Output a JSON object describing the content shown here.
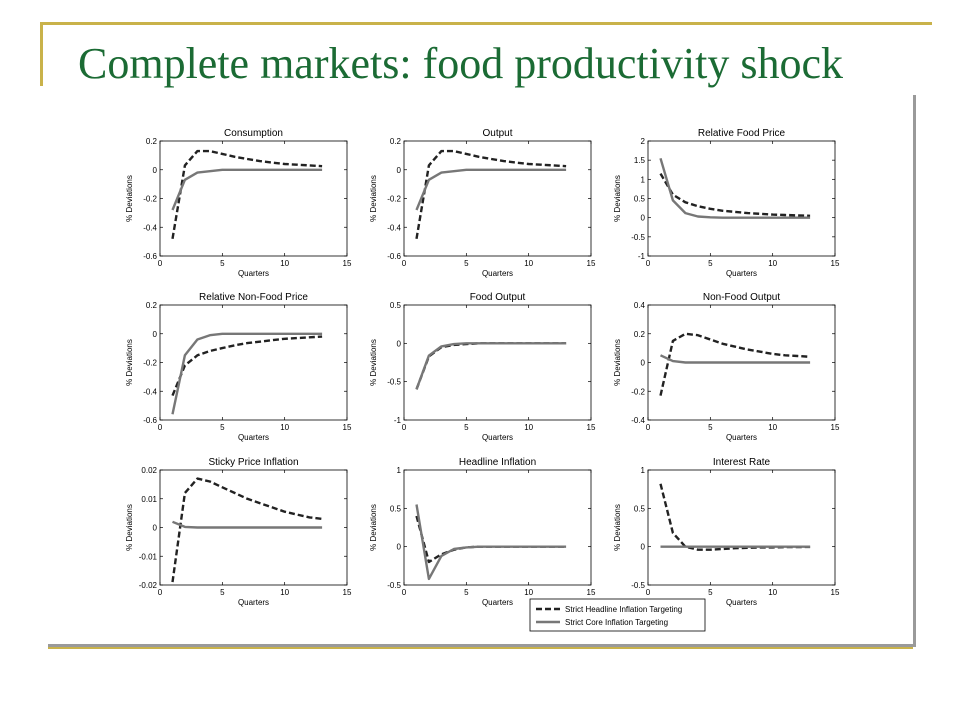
{
  "slide": {
    "title": "Complete markets: food productivity shock"
  },
  "colors": {
    "title": "#1b6b34",
    "accent_rule": "#c9b24a",
    "headline_series": "#222222",
    "core_series": "#777777"
  },
  "legend": {
    "placement": "bottom-center",
    "entries": [
      {
        "label": "Strict Headline Inflation Targeting",
        "style": "dashed",
        "color": "#222222"
      },
      {
        "label": "Strict Core Inflation Targeting",
        "style": "solid",
        "color": "#777777"
      }
    ]
  },
  "chart_data": [
    {
      "type": "line",
      "title": "Consumption",
      "xlabel": "Quarters",
      "ylabel": "% Deviations",
      "xlim": [
        0,
        15
      ],
      "ylim": [
        -0.6,
        0.2
      ],
      "xticks": [
        0,
        5,
        10,
        15
      ],
      "xtick_labels": [
        "0",
        "5",
        "10",
        "15"
      ],
      "yticks": [
        -0.6,
        -0.4,
        -0.2,
        0,
        0.2
      ],
      "ytick_labels": [
        "-0.6",
        "-0.4",
        "-0.2",
        "0",
        "0.2"
      ],
      "x": [
        1,
        2,
        3,
        4,
        5,
        6,
        7,
        8,
        9,
        10,
        11,
        12,
        13
      ],
      "series": [
        {
          "values": [
            -0.48,
            0.03,
            0.13,
            0.13,
            0.11,
            0.09,
            0.075,
            0.06,
            0.05,
            0.04,
            0.035,
            0.03,
            0.025
          ]
        },
        {
          "values": [
            -0.28,
            -0.07,
            -0.02,
            -0.01,
            0,
            0,
            0,
            0,
            0,
            0,
            0,
            0,
            0
          ]
        }
      ]
    },
    {
      "type": "line",
      "title": "Output",
      "xlabel": "Quarters",
      "ylabel": "% Deviations",
      "xlim": [
        0,
        15
      ],
      "ylim": [
        -0.6,
        0.2
      ],
      "xticks": [
        0,
        5,
        10,
        15
      ],
      "xtick_labels": [
        "0",
        "5",
        "10",
        "15"
      ],
      "yticks": [
        -0.6,
        -0.4,
        -0.2,
        0,
        0.2
      ],
      "ytick_labels": [
        "-0.6",
        "-0.4",
        "-0.2",
        "0",
        "0.2"
      ],
      "x": [
        1,
        2,
        3,
        4,
        5,
        6,
        7,
        8,
        9,
        10,
        11,
        12,
        13
      ],
      "series": [
        {
          "values": [
            -0.48,
            0.03,
            0.13,
            0.13,
            0.11,
            0.09,
            0.075,
            0.06,
            0.05,
            0.04,
            0.035,
            0.03,
            0.025
          ]
        },
        {
          "values": [
            -0.28,
            -0.07,
            -0.02,
            -0.01,
            0,
            0,
            0,
            0,
            0,
            0,
            0,
            0,
            0
          ]
        }
      ]
    },
    {
      "type": "line",
      "title": "Relative Food Price",
      "xlabel": "Quarters",
      "ylabel": "% Deviations",
      "xlim": [
        0,
        15
      ],
      "ylim": [
        -1,
        2
      ],
      "xticks": [
        0,
        5,
        10,
        15
      ],
      "xtick_labels": [
        "0",
        "5",
        "10",
        "15"
      ],
      "yticks": [
        -1,
        -0.5,
        0,
        0.5,
        1,
        1.5,
        2
      ],
      "ytick_labels": [
        "-1",
        "-0.5",
        "0",
        "0.5",
        "1",
        "1.5",
        "2"
      ],
      "x": [
        1,
        2,
        3,
        4,
        5,
        6,
        7,
        8,
        9,
        10,
        11,
        12,
        13
      ],
      "series": [
        {
          "values": [
            1.15,
            0.6,
            0.4,
            0.3,
            0.23,
            0.18,
            0.15,
            0.12,
            0.1,
            0.08,
            0.07,
            0.06,
            0.05
          ]
        },
        {
          "values": [
            1.55,
            0.45,
            0.12,
            0.03,
            0.01,
            0,
            0,
            0,
            0,
            0,
            0,
            0,
            0
          ]
        }
      ]
    },
    {
      "type": "line",
      "title": "Relative Non-Food Price",
      "xlabel": "Quarters",
      "ylabel": "% Deviations",
      "xlim": [
        0,
        15
      ],
      "ylim": [
        -0.6,
        0.2
      ],
      "xticks": [
        0,
        5,
        10,
        15
      ],
      "xtick_labels": [
        "0",
        "5",
        "10",
        "15"
      ],
      "yticks": [
        -0.6,
        -0.4,
        -0.2,
        0,
        0.2
      ],
      "ytick_labels": [
        "-0.6",
        "-0.4",
        "-0.2",
        "0",
        "0.2"
      ],
      "x": [
        1,
        2,
        3,
        4,
        5,
        6,
        7,
        8,
        9,
        10,
        11,
        12,
        13
      ],
      "series": [
        {
          "values": [
            -0.43,
            -0.22,
            -0.15,
            -0.12,
            -0.1,
            -0.08,
            -0.065,
            -0.055,
            -0.045,
            -0.035,
            -0.03,
            -0.025,
            -0.02
          ]
        },
        {
          "values": [
            -0.56,
            -0.15,
            -0.04,
            -0.01,
            0,
            0,
            0,
            0,
            0,
            0,
            0,
            0,
            0
          ]
        }
      ]
    },
    {
      "type": "line",
      "title": "Food Output",
      "xlabel": "Quarters",
      "ylabel": "% Deviations",
      "xlim": [
        0,
        15
      ],
      "ylim": [
        -1,
        0.5
      ],
      "xticks": [
        0,
        5,
        10,
        15
      ],
      "xtick_labels": [
        "0",
        "5",
        "10",
        "15"
      ],
      "yticks": [
        -1,
        -0.5,
        0,
        0.5
      ],
      "ytick_labels": [
        "-1",
        "-0.5",
        "0",
        "0.5"
      ],
      "x": [
        1,
        2,
        3,
        4,
        5,
        6,
        7,
        8,
        9,
        10,
        11,
        12,
        13
      ],
      "series": [
        {
          "values": [
            -0.6,
            -0.17,
            -0.05,
            -0.02,
            -0.01,
            0,
            0,
            0,
            0,
            0,
            0,
            0,
            0
          ]
        },
        {
          "values": [
            -0.6,
            -0.16,
            -0.04,
            -0.01,
            0,
            0,
            0,
            0,
            0,
            0,
            0,
            0,
            0
          ]
        }
      ]
    },
    {
      "type": "line",
      "title": "Non-Food Output",
      "xlabel": "Quarters",
      "ylabel": "% Deviations",
      "xlim": [
        0,
        15
      ],
      "ylim": [
        -0.4,
        0.4
      ],
      "xticks": [
        0,
        5,
        10,
        15
      ],
      "xtick_labels": [
        "0",
        "5",
        "10",
        "15"
      ],
      "yticks": [
        -0.4,
        -0.2,
        0,
        0.2,
        0.4
      ],
      "ytick_labels": [
        "-0.4",
        "-0.2",
        "0",
        "0.2",
        "0.4"
      ],
      "x": [
        1,
        2,
        3,
        4,
        5,
        6,
        7,
        8,
        9,
        10,
        11,
        12,
        13
      ],
      "series": [
        {
          "values": [
            -0.23,
            0.15,
            0.2,
            0.19,
            0.16,
            0.13,
            0.11,
            0.09,
            0.075,
            0.06,
            0.05,
            0.045,
            0.04
          ]
        },
        {
          "values": [
            0.05,
            0.01,
            0,
            0,
            0,
            0,
            0,
            0,
            0,
            0,
            0,
            0,
            0
          ]
        }
      ]
    },
    {
      "type": "line",
      "title": "Sticky Price Inflation",
      "xlabel": "Quarters",
      "ylabel": "% Deviations",
      "xlim": [
        0,
        15
      ],
      "ylim": [
        -0.02,
        0.02
      ],
      "xticks": [
        0,
        5,
        10,
        15
      ],
      "xtick_labels": [
        "0",
        "5",
        "10",
        "15"
      ],
      "yticks": [
        -0.02,
        -0.01,
        0,
        0.01,
        0.02
      ],
      "ytick_labels": [
        "-0.02",
        "-0.01",
        "0",
        "0.01",
        "0.02"
      ],
      "x": [
        1,
        2,
        3,
        4,
        5,
        6,
        7,
        8,
        9,
        10,
        11,
        12,
        13
      ],
      "series": [
        {
          "values": [
            -0.019,
            0.012,
            0.017,
            0.016,
            0.014,
            0.012,
            0.01,
            0.0085,
            0.007,
            0.0055,
            0.0045,
            0.0035,
            0.003
          ]
        },
        {
          "values": [
            0.002,
            0.0002,
            0,
            0,
            0,
            0,
            0,
            0,
            0,
            0,
            0,
            0,
            0
          ]
        }
      ]
    },
    {
      "type": "line",
      "title": "Headline Inflation",
      "xlabel": "Quarters",
      "ylabel": "% Deviations",
      "xlim": [
        0,
        15
      ],
      "ylim": [
        -0.5,
        1
      ],
      "xticks": [
        0,
        5,
        10,
        15
      ],
      "xtick_labels": [
        "0",
        "5",
        "10",
        "15"
      ],
      "yticks": [
        -0.5,
        0,
        0.5,
        1
      ],
      "ytick_labels": [
        "-0.5",
        "0",
        "0.5",
        "1"
      ],
      "x": [
        1,
        2,
        3,
        4,
        5,
        6,
        7,
        8,
        9,
        10,
        11,
        12,
        13
      ],
      "series": [
        {
          "values": [
            0.4,
            -0.2,
            -0.1,
            -0.04,
            -0.01,
            0,
            0,
            0,
            0,
            0,
            0,
            0,
            0
          ]
        },
        {
          "values": [
            0.55,
            -0.42,
            -0.12,
            -0.03,
            -0.01,
            0,
            0,
            0,
            0,
            0,
            0,
            0,
            0
          ]
        }
      ]
    },
    {
      "type": "line",
      "title": "Interest Rate",
      "xlabel": "Quarters",
      "ylabel": "% Deviations",
      "xlim": [
        0,
        15
      ],
      "ylim": [
        -0.5,
        1
      ],
      "xticks": [
        0,
        5,
        10,
        15
      ],
      "xtick_labels": [
        "0",
        "5",
        "10",
        "15"
      ],
      "yticks": [
        -0.5,
        0,
        0.5,
        1
      ],
      "ytick_labels": [
        "-0.5",
        "0",
        "0.5",
        "1"
      ],
      "x": [
        1,
        2,
        3,
        4,
        5,
        6,
        7,
        8,
        9,
        10,
        11,
        12,
        13
      ],
      "series": [
        {
          "values": [
            0.82,
            0.18,
            0,
            -0.04,
            -0.04,
            -0.03,
            -0.02,
            -0.015,
            -0.01,
            -0.01,
            -0.005,
            -0.005,
            -0.003
          ]
        },
        {
          "values": [
            0,
            0,
            0,
            0,
            0,
            0,
            0,
            0,
            0,
            0,
            0,
            0,
            0
          ]
        }
      ]
    }
  ]
}
